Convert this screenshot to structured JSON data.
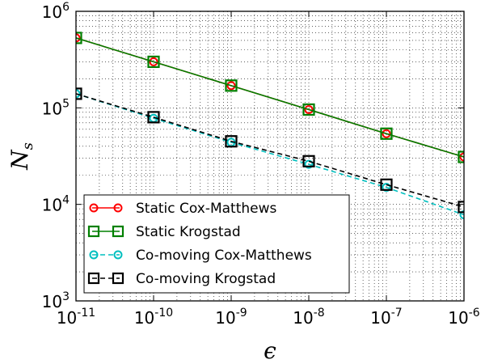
{
  "chart_data": {
    "type": "line",
    "xscale": "log",
    "yscale": "log",
    "xlim": [
      1e-11,
      1e-06
    ],
    "ylim": [
      1000,
      1000000
    ],
    "grid": true,
    "legend_position": "lower-left",
    "xlabel": "ϵ",
    "ylabel": {
      "main": "N",
      "sub": "s"
    },
    "x_ticks": [
      {
        "value": 1e-11,
        "base": "10",
        "exp": "-11"
      },
      {
        "value": 1e-10,
        "base": "10",
        "exp": "-10"
      },
      {
        "value": 1e-09,
        "base": "10",
        "exp": "-9"
      },
      {
        "value": 1e-08,
        "base": "10",
        "exp": "-8"
      },
      {
        "value": 1e-07,
        "base": "10",
        "exp": "-7"
      },
      {
        "value": 1e-06,
        "base": "10",
        "exp": "-6"
      }
    ],
    "y_ticks": [
      {
        "value": 1000,
        "base": "10",
        "exp": "3"
      },
      {
        "value": 10000,
        "base": "10",
        "exp": "4"
      },
      {
        "value": 100000,
        "base": "10",
        "exp": "5"
      },
      {
        "value": 1000000,
        "base": "10",
        "exp": "6"
      }
    ],
    "x": [
      1e-11,
      1e-10,
      1e-09,
      1e-08,
      1e-07,
      1e-06
    ],
    "series": [
      {
        "name": "Static Cox-Matthews",
        "values": [
          530000,
          300000,
          170000,
          96000,
          54000,
          31000
        ],
        "color": "#ff0000",
        "marker": "circle",
        "dash": "solid"
      },
      {
        "name": "Static Krogstad",
        "values": [
          530000,
          300000,
          170000,
          96000,
          54000,
          31000
        ],
        "color": "#008000",
        "marker": "square",
        "dash": "solid"
      },
      {
        "name": "Co-moving Cox-Matthews",
        "values": [
          140000,
          78000,
          44000,
          26000,
          15000,
          7800
        ],
        "color": "#00bfbf",
        "marker": "circle",
        "dash": "dashed"
      },
      {
        "name": "Co-moving Krogstad",
        "values": [
          140000,
          80000,
          45000,
          28000,
          16000,
          9400
        ],
        "color": "#000000",
        "marker": "square",
        "dash": "dashed"
      }
    ]
  }
}
